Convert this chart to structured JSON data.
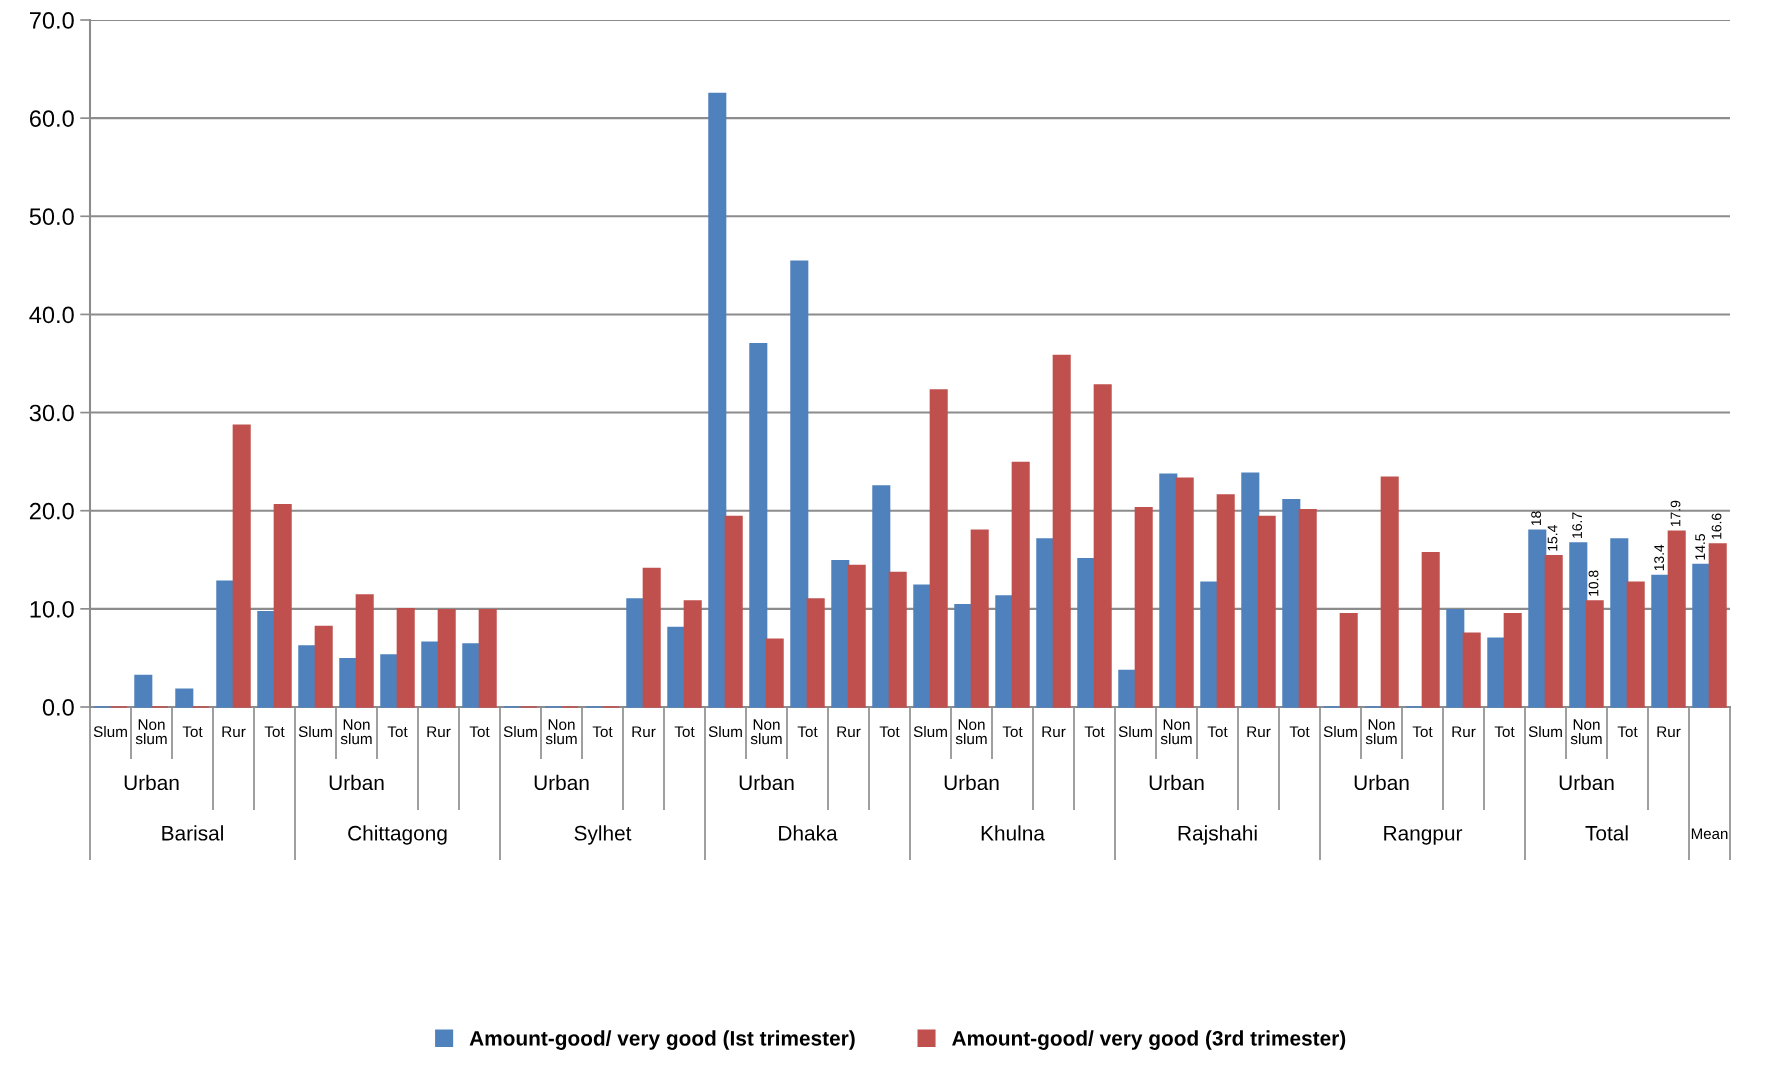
{
  "chart_data": {
    "type": "bar",
    "categories": [
      "Slum",
      "Non slum",
      "Tot",
      "Rur",
      "Tot",
      "Slum",
      "Non slum",
      "Tot",
      "Rur",
      "Tot",
      "Slum",
      "Non slum",
      "Tot",
      "Rur",
      "Tot",
      "Slum",
      "Non slum",
      "Tot",
      "Rur",
      "Tot",
      "Slum",
      "Non slum",
      "Tot",
      "Rur",
      "Tot",
      "Slum",
      "Non slum",
      "Tot",
      "Rur",
      "Tot",
      "Slum",
      "Non slum",
      "Tot",
      "Rur",
      "Tot",
      "Slum",
      "Non slum",
      "Tot",
      "Rur",
      null
    ],
    "series": [
      {
        "name": "Amount-good/ very good (Ist trimester)",
        "color": "#4f81bd",
        "values": [
          0,
          3.2,
          1.8,
          12.8,
          9.7,
          6.2,
          4.9,
          5.3,
          6.6,
          6.4,
          0,
          0,
          0,
          11.0,
          8.1,
          62.5,
          37.0,
          45.4,
          14.9,
          22.5,
          12.4,
          10.4,
          11.3,
          17.1,
          15.1,
          3.7,
          23.7,
          12.7,
          23.8,
          21.1,
          0,
          0,
          0,
          9.9,
          7.0,
          18,
          16.7,
          17.1,
          13.4,
          14.5
        ],
        "value_labels": [
          null,
          null,
          null,
          null,
          null,
          null,
          null,
          null,
          null,
          null,
          null,
          null,
          null,
          null,
          null,
          null,
          null,
          null,
          null,
          null,
          null,
          null,
          null,
          null,
          null,
          null,
          null,
          null,
          null,
          null,
          null,
          null,
          null,
          null,
          null,
          "18",
          "16.7",
          null,
          "13.4",
          "14.5"
        ]
      },
      {
        "name": "Amount-good/ very good (3rd trimester)",
        "color": "#c0504d",
        "values": [
          0,
          0,
          0,
          28.7,
          20.6,
          8.2,
          11.4,
          10.0,
          9.9,
          9.9,
          0,
          0,
          0,
          14.1,
          10.8,
          19.4,
          6.9,
          11.0,
          14.4,
          13.7,
          32.3,
          18.0,
          24.9,
          35.8,
          32.8,
          20.3,
          23.3,
          21.6,
          19.4,
          20.1,
          9.5,
          23.4,
          15.7,
          7.5,
          9.5,
          15.4,
          10.8,
          12.7,
          17.9,
          16.6
        ],
        "value_labels": [
          null,
          null,
          null,
          null,
          null,
          null,
          null,
          null,
          null,
          null,
          null,
          null,
          null,
          null,
          null,
          null,
          null,
          null,
          null,
          null,
          null,
          null,
          null,
          null,
          null,
          null,
          null,
          null,
          null,
          null,
          null,
          null,
          null,
          null,
          null,
          "15.4",
          "10.8",
          null,
          "17.9",
          "16.6"
        ]
      }
    ],
    "ylim": [
      0,
      70
    ],
    "yticks": [
      {
        "value": 0,
        "label": "0.0"
      },
      {
        "value": 10,
        "label": "10.0"
      },
      {
        "value": 20,
        "label": "20.0"
      },
      {
        "value": 30,
        "label": "30.0"
      },
      {
        "value": 40,
        "label": "40.0"
      },
      {
        "value": 50,
        "label": "50.0"
      },
      {
        "value": 60,
        "label": "60.0"
      },
      {
        "value": 70,
        "label": "70.0"
      }
    ],
    "grid": "y",
    "legend": "bottom",
    "annotations": [
      "Urban",
      "Urban",
      "Urban",
      "Urban",
      "Urban",
      "Urban",
      "Urban",
      "Urban",
      "Barisal",
      "Chittagong",
      "Sylhet",
      "Dhaka",
      "Khulna",
      "Rajshahi",
      "Rangpur",
      "Total",
      "Mean"
    ]
  }
}
